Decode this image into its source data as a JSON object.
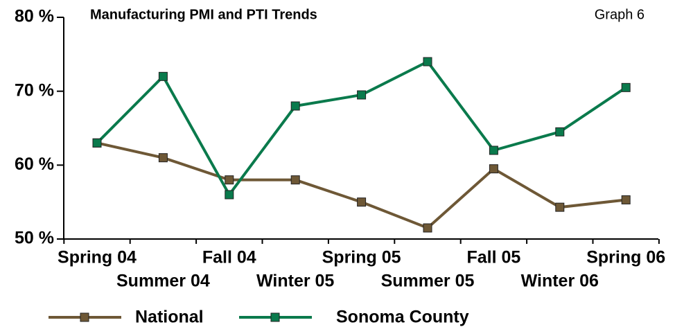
{
  "chart_data": {
    "type": "line",
    "title": "Manufacturing PMI and PTI Trends",
    "subtitle": "Graph 6",
    "categories": [
      "Spring 04",
      "Summer 04",
      "Fall 04",
      "Winter 05",
      "Spring 05",
      "Summer 05",
      "Fall 05",
      "Winter 06",
      "Spring 06"
    ],
    "series": [
      {
        "name": "National",
        "color": "#6e5836",
        "values": [
          63,
          61,
          58,
          58,
          55,
          51.5,
          59.5,
          54.3,
          55.3
        ]
      },
      {
        "name": "Sonoma County",
        "color": "#0a7a4c",
        "values": [
          63,
          72,
          56,
          68,
          69.5,
          74,
          62,
          64.5,
          70.5
        ]
      }
    ],
    "ylim": [
      50,
      80
    ],
    "yticks": [
      {
        "value": 50,
        "label": "50 %"
      },
      {
        "value": 60,
        "label": "60 %"
      },
      {
        "value": 70,
        "label": "70 %"
      },
      {
        "value": 80,
        "label": "80 %"
      }
    ],
    "grid": false,
    "legend": "bottom"
  }
}
